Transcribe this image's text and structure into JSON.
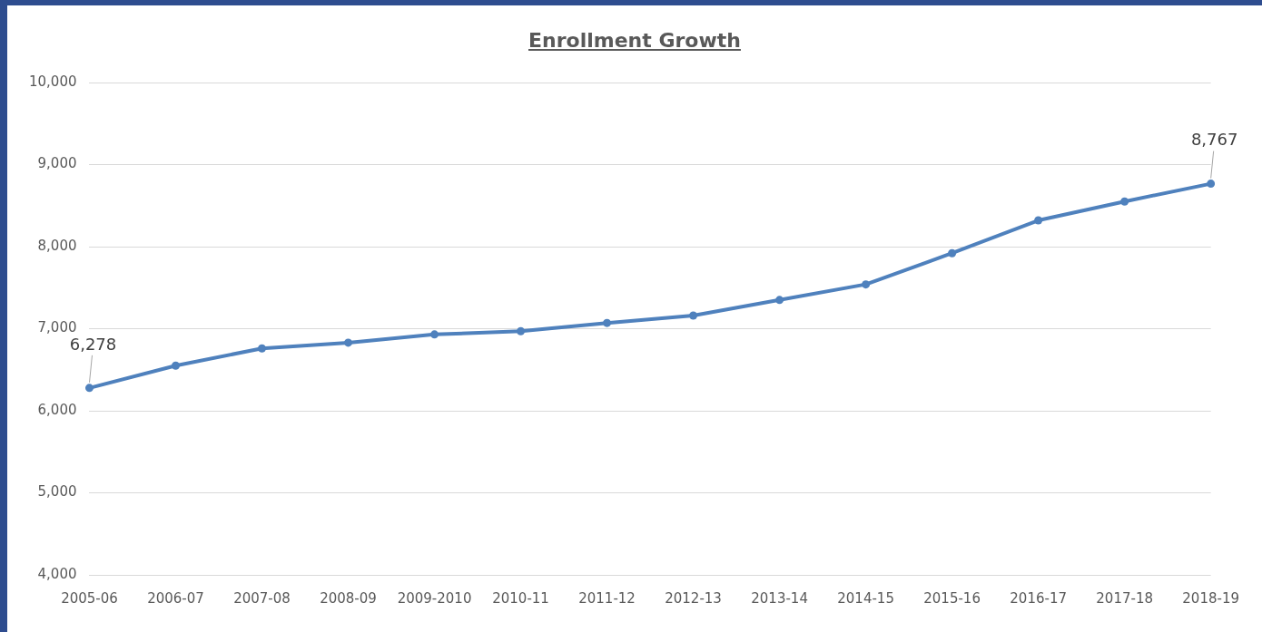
{
  "chart_data": {
    "type": "line",
    "title": "Enrollment Growth",
    "categories": [
      "2005-06",
      "2006-07",
      "2007-08",
      "2008-09",
      "2009-2010",
      "2010-11",
      "2011-12",
      "2012-13",
      "2013-14",
      "2014-15",
      "2015-16",
      "2016-17",
      "2017-18",
      "2018-19"
    ],
    "series": [
      {
        "color": "#4f81bd",
        "values": [
          6278,
          6550,
          6760,
          6830,
          6930,
          6970,
          7070,
          7160,
          7350,
          7540,
          7920,
          8320,
          8550,
          8767
        ],
        "value_labels": [
          "6,278",
          null,
          null,
          null,
          null,
          null,
          null,
          null,
          null,
          null,
          null,
          null,
          null,
          "8,767"
        ]
      }
    ],
    "ylim": [
      4000,
      10000
    ],
    "yticks": [
      {
        "value": 4000,
        "label": "4,000"
      },
      {
        "value": 5000,
        "label": "5,000"
      },
      {
        "value": 6000,
        "label": "6,000"
      },
      {
        "value": 7000,
        "label": "7,000"
      },
      {
        "value": 8000,
        "label": "8,000"
      },
      {
        "value": 9000,
        "label": "9,000"
      },
      {
        "value": 10000,
        "label": "10,000"
      }
    ],
    "grid": "y",
    "legend": false,
    "marker": "circle",
    "line_style": "solid"
  }
}
